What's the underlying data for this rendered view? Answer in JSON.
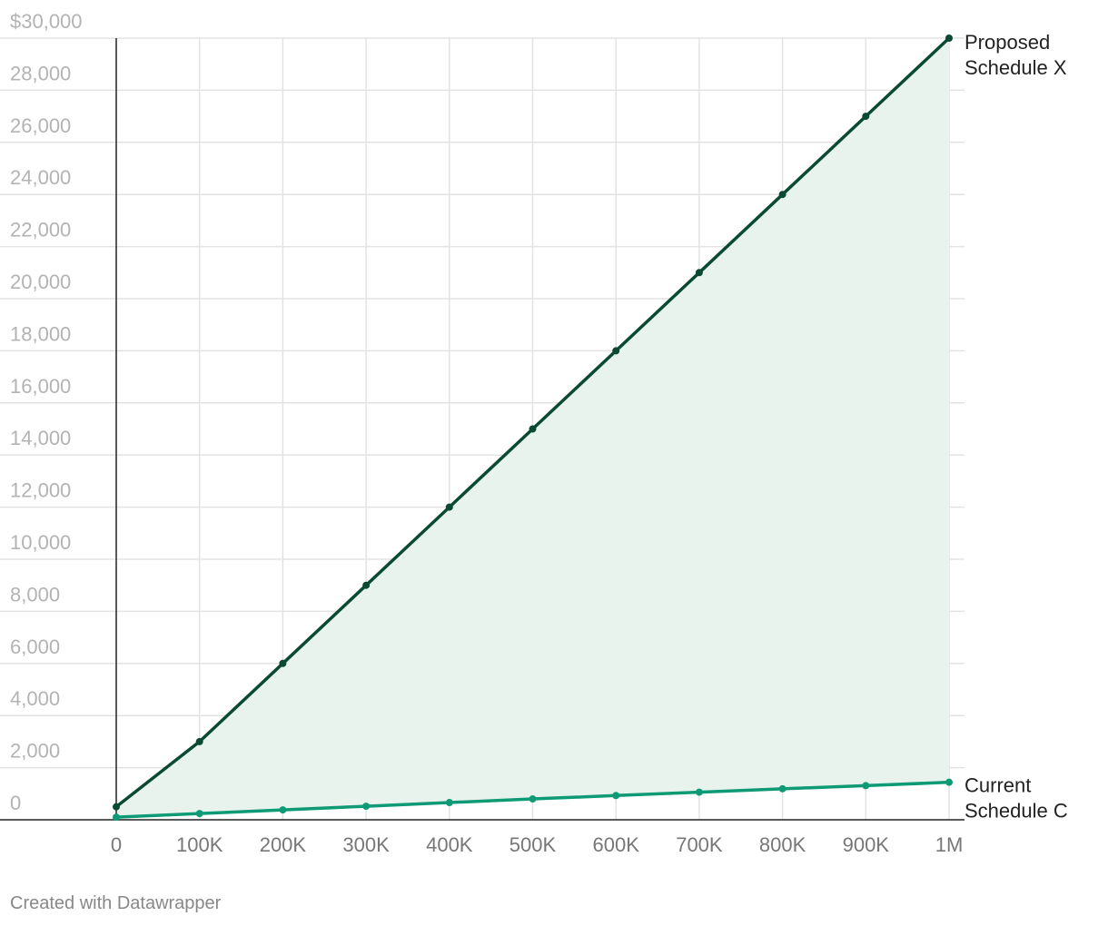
{
  "chart_data": {
    "type": "line",
    "x": [
      0,
      100000,
      200000,
      300000,
      400000,
      500000,
      600000,
      700000,
      800000,
      900000,
      1000000
    ],
    "x_tick_labels": [
      "0",
      "100K",
      "200K",
      "300K",
      "400K",
      "500K",
      "600K",
      "700K",
      "800K",
      "900K",
      "1M"
    ],
    "y_tick_labels": [
      "0",
      "2,000",
      "4,000",
      "6,000",
      "8,000",
      "10,000",
      "12,000",
      "14,000",
      "16,000",
      "18,000",
      "20,000",
      "22,000",
      "24,000",
      "26,000",
      "28,000",
      "$30,000"
    ],
    "y_ticks": [
      0,
      2000,
      4000,
      6000,
      8000,
      10000,
      12000,
      14000,
      16000,
      18000,
      20000,
      22000,
      24000,
      26000,
      28000,
      30000
    ],
    "xlim": [
      0,
      1000000
    ],
    "ylim": [
      0,
      30000
    ],
    "grid": true,
    "area_between_series": true,
    "series": [
      {
        "name_lines": [
          "Proposed",
          "Schedule X"
        ],
        "color": "#0a4a33",
        "values": [
          500,
          3000,
          6000,
          9000,
          12000,
          15000,
          18000,
          21000,
          24000,
          27000,
          30000
        ]
      },
      {
        "name_lines": [
          "Current",
          "Schedule C"
        ],
        "color": "#0e9a74",
        "values": [
          100,
          240,
          380,
          520,
          660,
          800,
          930,
          1060,
          1190,
          1310,
          1440
        ]
      }
    ],
    "area_fill": "#e8f3ee"
  },
  "footer": {
    "credit": "Created with Datawrapper"
  }
}
